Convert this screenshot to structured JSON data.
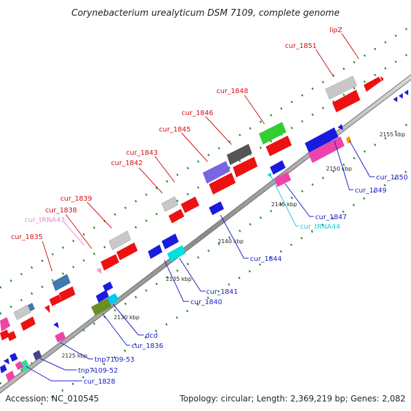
{
  "title": "Corynebacterium urealyticum DSM 7109, complete genome",
  "footer": {
    "accession": "Accession: NC_010545",
    "topology": "Topology: circular; Length: 2,369,219 bp; Genes: 2,082"
  },
  "colors": {
    "backbone": "#9a9a9a",
    "top_label": "#d01010",
    "bottom_label": "#1a1ac8",
    "trna_top_label": "#ee88cc",
    "trna_bottom_label": "#22c8d8",
    "tick_dots": "#1a8a1a"
  },
  "ticks": [
    {
      "label": "2125 kbp"
    },
    {
      "label": "2130 kbp"
    },
    {
      "label": "2135 kbp"
    },
    {
      "label": "2140 kbp"
    },
    {
      "label": "2145 kbp"
    },
    {
      "label": "2150 kbp"
    },
    {
      "label": "2155 kbp"
    }
  ],
  "labels_top": [
    {
      "text": "cur_1835"
    },
    {
      "text": "cur_tRNA43"
    },
    {
      "text": "cur_1838"
    },
    {
      "text": "cur_1839"
    },
    {
      "text": "cur_1842"
    },
    {
      "text": "cur_1843"
    },
    {
      "text": "cur_1845"
    },
    {
      "text": "cur_1846"
    },
    {
      "text": "cur_1848"
    },
    {
      "text": "cur_1851"
    },
    {
      "text": "lipZ"
    }
  ],
  "labels_bottom": [
    {
      "text": "cur_1828"
    },
    {
      "text": "tnp7109-52"
    },
    {
      "text": "tnp7109-53"
    },
    {
      "text": "cur_1836"
    },
    {
      "text": "dcd"
    },
    {
      "text": "cur_1840"
    },
    {
      "text": "cur_1841"
    },
    {
      "text": "cur_1844"
    },
    {
      "text": "cur_tRNA44"
    },
    {
      "text": "cur_1847"
    },
    {
      "text": "cur_1849"
    },
    {
      "text": "cur_1850"
    }
  ]
}
